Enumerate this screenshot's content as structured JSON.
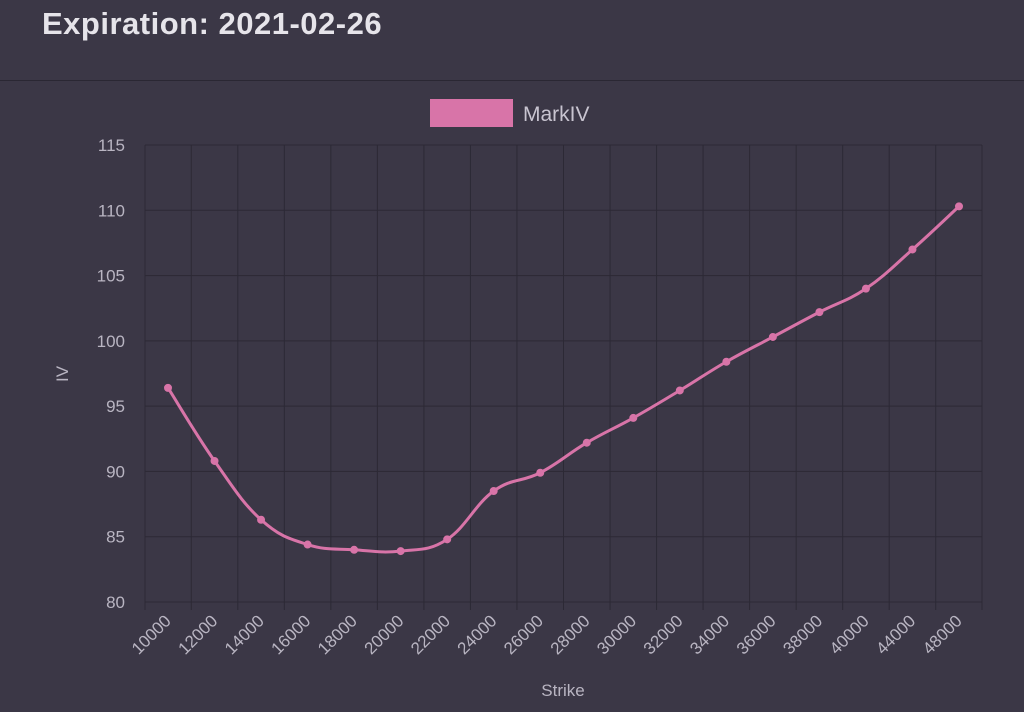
{
  "header": {
    "title": "Expiration: 2021-02-26"
  },
  "colors": {
    "background": "#3b3746",
    "series": "#d874a8",
    "grid": "#2c2935",
    "text": "#b9b5c2"
  },
  "chart_data": {
    "type": "line",
    "title": "",
    "xlabel": "Strike",
    "ylabel": "IV",
    "ylim": [
      80,
      115
    ],
    "yticks": [
      80,
      85,
      90,
      95,
      100,
      105,
      110,
      115
    ],
    "legend": "top-center",
    "grid": true,
    "x": [
      10000,
      12000,
      14000,
      16000,
      18000,
      20000,
      22000,
      24000,
      26000,
      28000,
      30000,
      32000,
      34000,
      36000,
      38000,
      40000,
      44000,
      48000
    ],
    "x_tick_labels": [
      "10000",
      "12000",
      "14000",
      "16000",
      "18000",
      "20000",
      "22000",
      "24000",
      "26000",
      "28000",
      "30000",
      "32000",
      "34000",
      "36000",
      "38000",
      "40000",
      "44000",
      "48000"
    ],
    "series": [
      {
        "name": "MarkIV",
        "values": [
          96.4,
          90.8,
          86.3,
          84.4,
          84.0,
          83.9,
          84.8,
          88.5,
          89.9,
          92.2,
          94.1,
          96.2,
          98.4,
          100.3,
          102.2,
          104.0,
          107.0,
          110.3
        ]
      }
    ]
  }
}
